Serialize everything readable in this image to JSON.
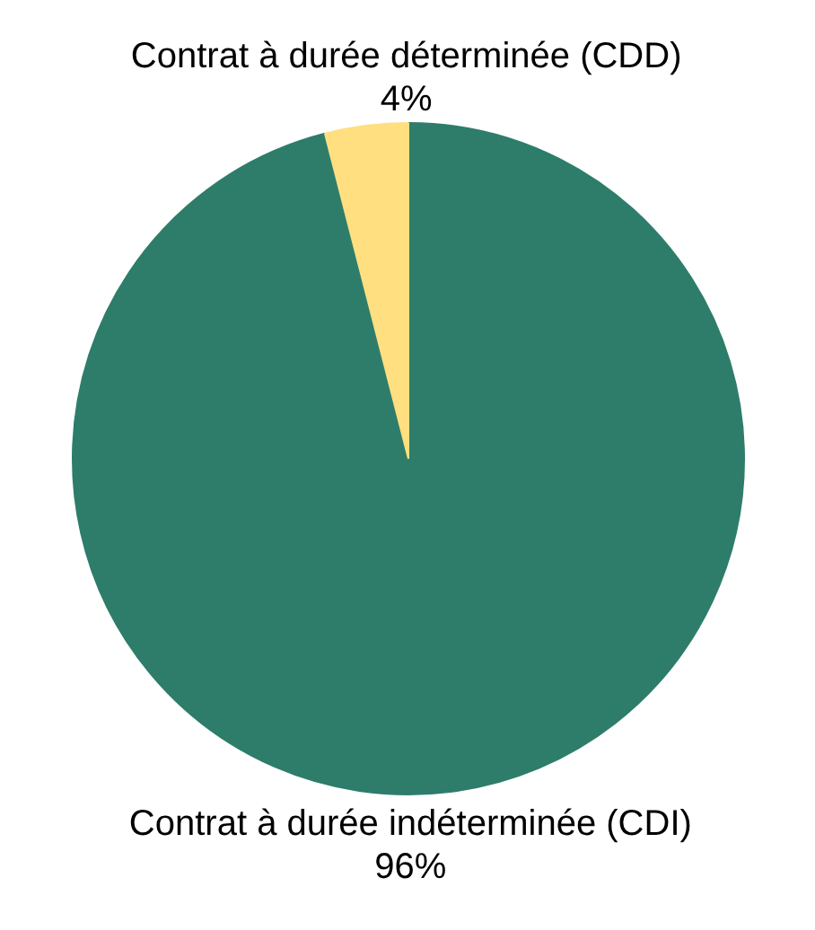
{
  "chart_data": {
    "type": "pie",
    "categories": [
      "Contrat à durée indéterminée (CDI)",
      "Contrat à durée déterminée (CDD)"
    ],
    "values": [
      96,
      4
    ],
    "colors": [
      "#2e7d6b",
      "#ffdf80"
    ],
    "value_labels": [
      "96%",
      "4%"
    ],
    "legend": false
  }
}
